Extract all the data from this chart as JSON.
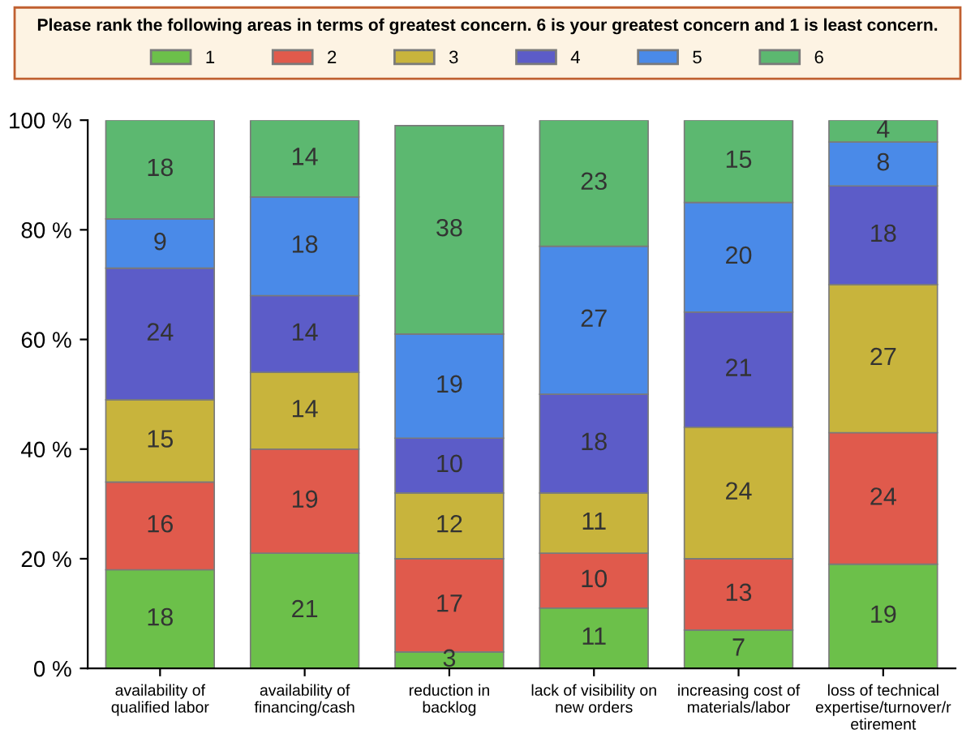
{
  "chart_data": {
    "type": "bar",
    "stacked": true,
    "title": "Please rank the following areas in terms of greatest concern. 6 is your greatest concern and 1 is least concern.",
    "categories": [
      "availability of\nqualified labor",
      "availability of\nfinancing/cash",
      "reduction in\nbacklog",
      "lack of visibility on\nnew orders",
      "increasing cost of\nmaterials/labor",
      "loss of technical\nexpertise/turnover/r\netirement"
    ],
    "series": [
      {
        "name": "1",
        "color": "#6cc04a",
        "values": [
          18,
          21,
          3,
          11,
          7,
          19
        ]
      },
      {
        "name": "2",
        "color": "#e05a4c",
        "values": [
          16,
          19,
          17,
          10,
          13,
          24
        ]
      },
      {
        "name": "3",
        "color": "#c8b43c",
        "values": [
          15,
          14,
          12,
          11,
          24,
          27
        ]
      },
      {
        "name": "4",
        "color": "#5c5cc8",
        "values": [
          24,
          14,
          10,
          18,
          21,
          18
        ]
      },
      {
        "name": "5",
        "color": "#4a8ae8",
        "values": [
          9,
          18,
          19,
          27,
          20,
          8
        ]
      },
      {
        "name": "6",
        "color": "#5cb870",
        "values": [
          18,
          14,
          38,
          23,
          15,
          4
        ]
      }
    ],
    "ylim": [
      0,
      100
    ],
    "yticks": [
      {
        "value": 0,
        "label": "0 %"
      },
      {
        "value": 20,
        "label": "20 %"
      },
      {
        "value": 40,
        "label": "40 %"
      },
      {
        "value": 60,
        "label": "60 %"
      },
      {
        "value": 80,
        "label": "80 %"
      },
      {
        "value": 100,
        "label": "100 %"
      }
    ],
    "data_labels": true,
    "legend": "top",
    "grid": false
  }
}
